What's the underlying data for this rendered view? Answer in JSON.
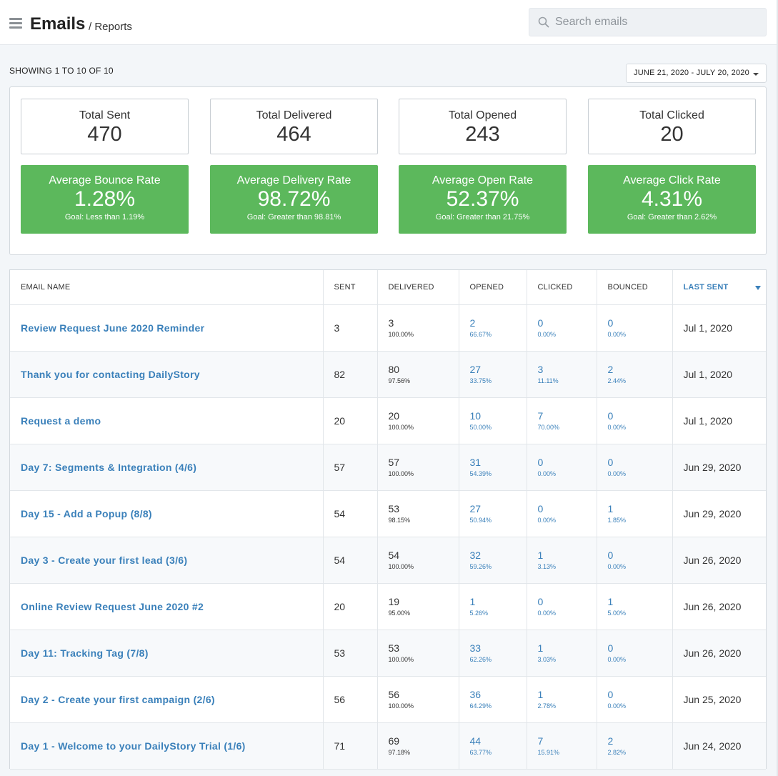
{
  "header": {
    "title": "Emails",
    "breadcrumb": "/ Reports",
    "search_placeholder": "Search emails"
  },
  "toolbar": {
    "showing": "SHOWING 1 TO 10 OF 10",
    "date_range": "JUNE 21, 2020 - JULY 20, 2020"
  },
  "stats": [
    {
      "label": "Total Sent",
      "value": "470"
    },
    {
      "label": "Total Delivered",
      "value": "464"
    },
    {
      "label": "Total Opened",
      "value": "243"
    },
    {
      "label": "Total Clicked",
      "value": "20"
    }
  ],
  "rates": [
    {
      "label": "Average Bounce Rate",
      "value": "1.28%",
      "goal": "Goal: Less than 1.19%"
    },
    {
      "label": "Average Delivery Rate",
      "value": "98.72%",
      "goal": "Goal: Greater than 98.81%"
    },
    {
      "label": "Average Open Rate",
      "value": "52.37%",
      "goal": "Goal: Greater than 21.75%"
    },
    {
      "label": "Average Click Rate",
      "value": "4.31%",
      "goal": "Goal: Greater than 2.62%"
    }
  ],
  "colors": {
    "success": "#5cb85c",
    "link": "#3a80ba"
  },
  "table": {
    "columns": [
      "EMAIL NAME",
      "SENT",
      "DELIVERED",
      "OPENED",
      "CLICKED",
      "BOUNCED",
      "LAST SENT"
    ],
    "rows": [
      {
        "name": "Review Request June 2020 Reminder",
        "sent": "3",
        "delivered": "3",
        "delivered_pct": "100.00%",
        "opened": "2",
        "opened_pct": "66.67%",
        "clicked": "0",
        "clicked_pct": "0.00%",
        "bounced": "0",
        "bounced_pct": "0.00%",
        "last_sent": "Jul 1, 2020"
      },
      {
        "name": "Thank you for contacting DailyStory",
        "sent": "82",
        "delivered": "80",
        "delivered_pct": "97.56%",
        "opened": "27",
        "opened_pct": "33.75%",
        "clicked": "3",
        "clicked_pct": "11.11%",
        "bounced": "2",
        "bounced_pct": "2.44%",
        "last_sent": "Jul 1, 2020"
      },
      {
        "name": "Request a demo",
        "sent": "20",
        "delivered": "20",
        "delivered_pct": "100.00%",
        "opened": "10",
        "opened_pct": "50.00%",
        "clicked": "7",
        "clicked_pct": "70.00%",
        "bounced": "0",
        "bounced_pct": "0.00%",
        "last_sent": "Jul 1, 2020"
      },
      {
        "name": "Day 7: Segments & Integration (4/6)",
        "sent": "57",
        "delivered": "57",
        "delivered_pct": "100.00%",
        "opened": "31",
        "opened_pct": "54.39%",
        "clicked": "0",
        "clicked_pct": "0.00%",
        "bounced": "0",
        "bounced_pct": "0.00%",
        "last_sent": "Jun 29, 2020"
      },
      {
        "name": "Day 15 - Add a Popup (8/8)",
        "sent": "54",
        "delivered": "53",
        "delivered_pct": "98.15%",
        "opened": "27",
        "opened_pct": "50.94%",
        "clicked": "0",
        "clicked_pct": "0.00%",
        "bounced": "1",
        "bounced_pct": "1.85%",
        "last_sent": "Jun 29, 2020"
      },
      {
        "name": "Day 3 - Create your first lead (3/6)",
        "sent": "54",
        "delivered": "54",
        "delivered_pct": "100.00%",
        "opened": "32",
        "opened_pct": "59.26%",
        "clicked": "1",
        "clicked_pct": "3.13%",
        "bounced": "0",
        "bounced_pct": "0.00%",
        "last_sent": "Jun 26, 2020"
      },
      {
        "name": "Online Review Request June 2020 #2",
        "sent": "20",
        "delivered": "19",
        "delivered_pct": "95.00%",
        "opened": "1",
        "opened_pct": "5.26%",
        "clicked": "0",
        "clicked_pct": "0.00%",
        "bounced": "1",
        "bounced_pct": "5.00%",
        "last_sent": "Jun 26, 2020"
      },
      {
        "name": "Day 11: Tracking Tag (7/8)",
        "sent": "53",
        "delivered": "53",
        "delivered_pct": "100.00%",
        "opened": "33",
        "opened_pct": "62.26%",
        "clicked": "1",
        "clicked_pct": "3.03%",
        "bounced": "0",
        "bounced_pct": "0.00%",
        "last_sent": "Jun 26, 2020"
      },
      {
        "name": "Day 2 - Create your first campaign (2/6)",
        "sent": "56",
        "delivered": "56",
        "delivered_pct": "100.00%",
        "opened": "36",
        "opened_pct": "64.29%",
        "clicked": "1",
        "clicked_pct": "2.78%",
        "bounced": "0",
        "bounced_pct": "0.00%",
        "last_sent": "Jun 25, 2020"
      },
      {
        "name": "Day 1 - Welcome to your DailyStory Trial (1/6)",
        "sent": "71",
        "delivered": "69",
        "delivered_pct": "97.18%",
        "opened": "44",
        "opened_pct": "63.77%",
        "clicked": "7",
        "clicked_pct": "15.91%",
        "bounced": "2",
        "bounced_pct": "2.82%",
        "last_sent": "Jun 24, 2020"
      }
    ]
  }
}
